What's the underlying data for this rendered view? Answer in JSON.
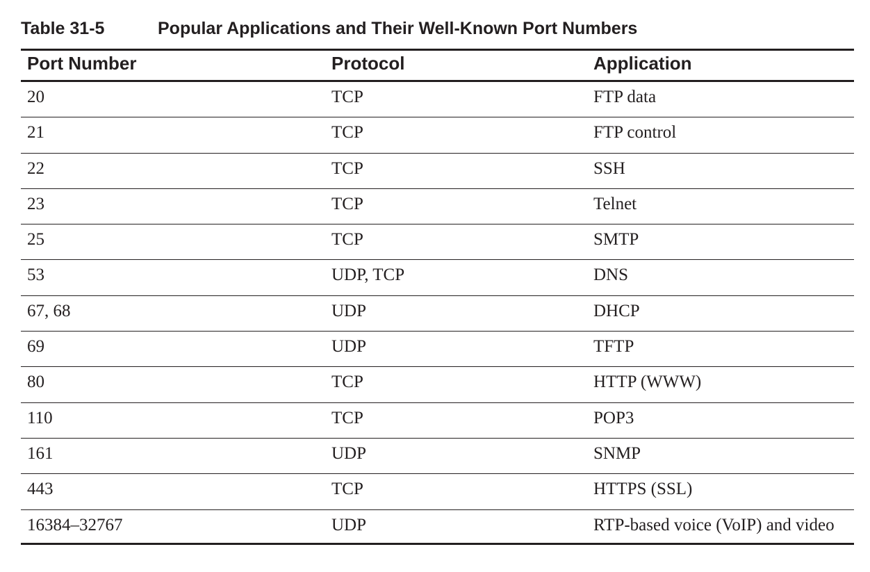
{
  "table": {
    "number": "Table 31-5",
    "title": "Popular Applications and Their Well-Known Port Numbers",
    "headers": [
      "Port Number",
      "Protocol",
      "Application"
    ],
    "rows": [
      [
        "20",
        "TCP",
        "FTP data"
      ],
      [
        "21",
        "TCP",
        "FTP control"
      ],
      [
        "22",
        "TCP",
        "SSH"
      ],
      [
        "23",
        "TCP",
        "Telnet"
      ],
      [
        "25",
        "TCP",
        "SMTP"
      ],
      [
        "53",
        "UDP, TCP",
        "DNS"
      ],
      [
        "67, 68",
        "UDP",
        "DHCP"
      ],
      [
        "69",
        "UDP",
        "TFTP"
      ],
      [
        "80",
        "TCP",
        "HTTP (WWW)"
      ],
      [
        "110",
        "TCP",
        "POP3"
      ],
      [
        "161",
        "UDP",
        "SNMP"
      ],
      [
        "443",
        "TCP",
        "HTTPS (SSL)"
      ],
      [
        "16384–32767",
        "UDP",
        "RTP-based voice (VoIP) and video"
      ]
    ]
  }
}
